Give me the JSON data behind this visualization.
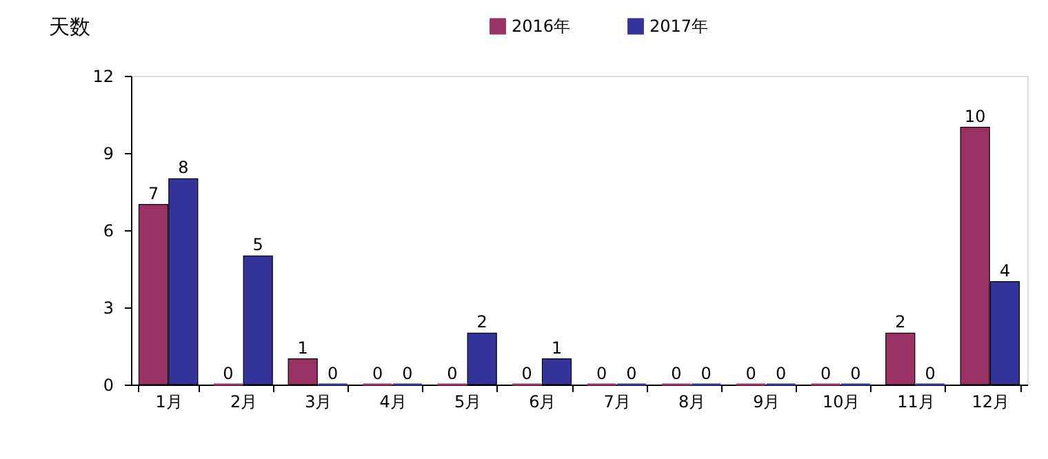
{
  "chart_data": {
    "type": "bar",
    "ylabel": "天数",
    "categories": [
      "1月",
      "2月",
      "3月",
      "4月",
      "5月",
      "6月",
      "7月",
      "8月",
      "9月",
      "10月",
      "11月",
      "12月"
    ],
    "series": [
      {
        "name": "2016年",
        "color": "#993366",
        "values": [
          7,
          0,
          1,
          0,
          0,
          0,
          0,
          0,
          0,
          0,
          2,
          10
        ]
      },
      {
        "name": "2017年",
        "color": "#333399",
        "values": [
          8,
          5,
          0,
          0,
          2,
          1,
          0,
          0,
          0,
          0,
          0,
          4
        ]
      }
    ],
    "ylim": [
      0,
      12
    ],
    "yticks": [
      0,
      3,
      6,
      9,
      12
    ],
    "grid": false,
    "legend": "top",
    "data_labels": true
  }
}
